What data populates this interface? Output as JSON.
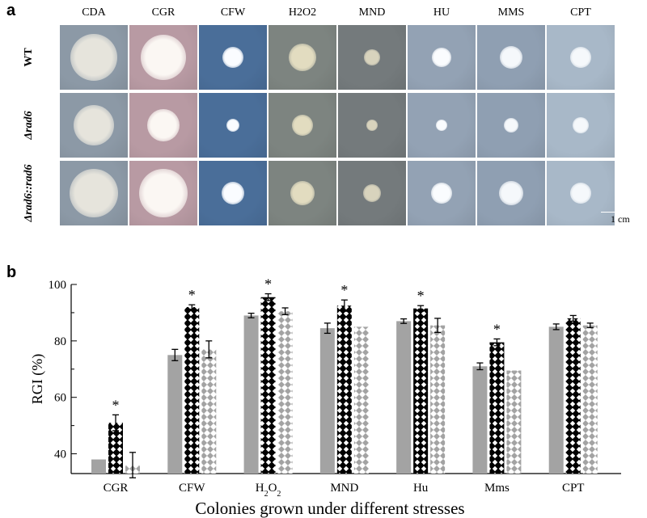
{
  "panel_a": {
    "label": "a",
    "columns": [
      "CDA",
      "CGR",
      "CFW",
      "H2O2",
      "MND",
      "HU",
      "MMS",
      "CPT"
    ],
    "rows": [
      {
        "label": "WT",
        "italic": false
      },
      {
        "label": "Δrad6",
        "italic": true
      },
      {
        "label": "Δrad6::rad6",
        "italic": true
      }
    ],
    "scalebar": "1 cm",
    "backgrounds": [
      "#8c99a6",
      "#b89aa3",
      "#4a6e99",
      "#7d8480",
      "#747a7c",
      "#93a2b4",
      "#8f9fb2",
      "#a8b8c8"
    ],
    "colony_colors": [
      "#e6e4dc",
      "#fbf7f3",
      "#fafcff",
      "#e2dcc0",
      "#d8d3bd",
      "#fafcfe",
      "#f5f8fb",
      "#f5f8fb"
    ],
    "colony_diameters": [
      [
        58,
        56,
        26,
        34,
        20,
        24,
        28,
        26
      ],
      [
        50,
        40,
        16,
        26,
        14,
        14,
        18,
        20
      ],
      [
        60,
        60,
        28,
        30,
        22,
        26,
        30,
        26
      ]
    ]
  },
  "panel_b": {
    "label": "b",
    "chart_data": {
      "type": "bar",
      "categories": [
        "CGR",
        "CFW",
        "H2O2",
        "MND",
        "Hu",
        "Mms",
        "CPT"
      ],
      "xlabel": "Colonies grown under different stresses",
      "ylabel": "RGI (%)",
      "ylim": [
        33,
        100
      ],
      "yticks": [
        40,
        60,
        80,
        100
      ],
      "series": [
        {
          "values": [
            38,
            75,
            89,
            84.5,
            87,
            71,
            85
          ],
          "errors": [
            0,
            2,
            0.8,
            1.8,
            0.8,
            1.2,
            1
          ],
          "color": "#a3a3a3",
          "pattern": "solid"
        },
        {
          "values": [
            51,
            92,
            95.5,
            92.5,
            91.5,
            79.5,
            88
          ],
          "errors": [
            2.8,
            0.8,
            1.2,
            2,
            1,
            1.2,
            1
          ],
          "color": "#000000",
          "pattern": "crosshatch"
        },
        {
          "values": [
            36,
            77,
            90.5,
            85,
            85.5,
            69.5,
            85.5
          ],
          "errors": [
            4.5,
            3,
            1.2,
            0,
            2.5,
            0,
            0.8
          ],
          "color": "#a3a3a3",
          "pattern": "diamond"
        }
      ],
      "significance": [
        "*",
        "*",
        "*",
        "*",
        "*",
        "*",
        ""
      ]
    }
  }
}
